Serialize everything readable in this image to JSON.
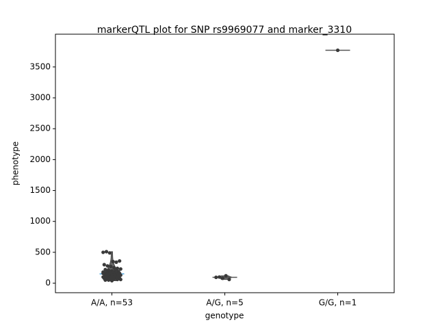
{
  "chart_data": {
    "type": "strip",
    "title": "markerQTL plot for SNP rs9969077 and marker_3310",
    "xlabel": "genotype",
    "ylabel": "phenotype",
    "categories": [
      "A/A, n=53",
      "A/G, n=5",
      "G/G, n=1"
    ],
    "values": [
      [
        500,
        510,
        490,
        350,
        340,
        360,
        300,
        280,
        270,
        250,
        240,
        230,
        220,
        210,
        200,
        200,
        190,
        180,
        180,
        170,
        170,
        160,
        160,
        150,
        150,
        150,
        140,
        140,
        130,
        130,
        120,
        120,
        110,
        110,
        100,
        100,
        100,
        90,
        90,
        80,
        80,
        80,
        70,
        70,
        60,
        60,
        50,
        50,
        40,
        120,
        140,
        160,
        100
      ],
      [
        95,
        100,
        80,
        120,
        60
      ],
      [
        3770
      ]
    ],
    "color": "#3a3a3a",
    "ylim": [
      -154,
      4030
    ],
    "yticks": [
      0,
      500,
      1000,
      1500,
      2000,
      2500,
      3000,
      3500
    ]
  }
}
